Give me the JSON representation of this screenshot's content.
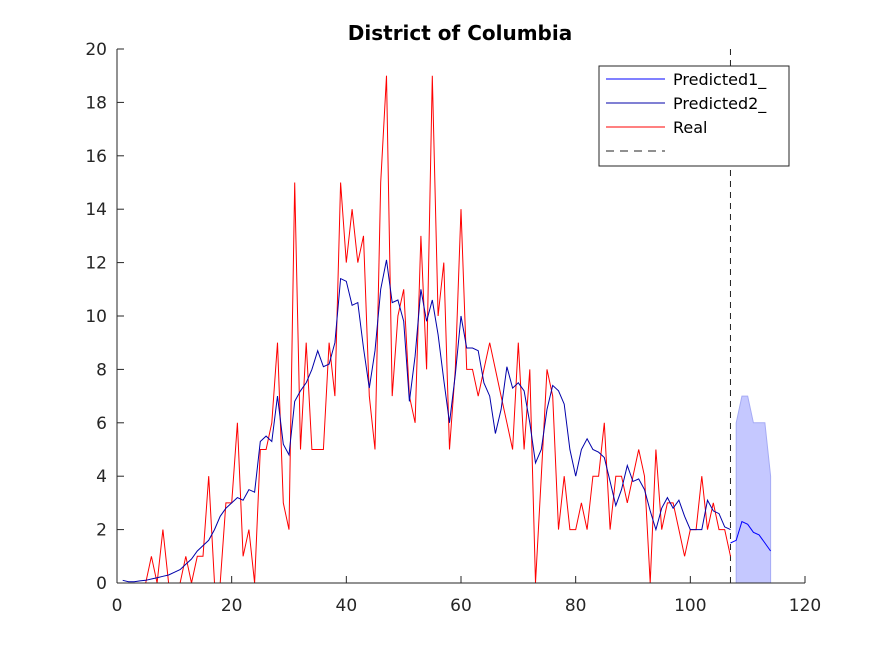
{
  "chart_data": {
    "type": "line",
    "title": "District of Columbia",
    "xlabel": "",
    "ylabel": "",
    "xlim": [
      0,
      120
    ],
    "ylim": [
      0,
      20
    ],
    "xticks": [
      0,
      20,
      40,
      60,
      80,
      100,
      120
    ],
    "yticks": [
      0,
      2,
      4,
      6,
      8,
      10,
      12,
      14,
      16,
      18,
      20
    ],
    "grid": false,
    "legend_position": "top-right",
    "vline_x": 107,
    "series": [
      {
        "name": "Predicted1_",
        "color": "#0000ff",
        "x": [
          107,
          108,
          109,
          110,
          111,
          112,
          113,
          114
        ],
        "y": [
          1.5,
          1.6,
          2.3,
          2.2,
          1.9,
          1.8,
          1.5,
          1.2
        ]
      },
      {
        "name": "Predicted2_",
        "color": "#0000aa",
        "x": [
          1,
          2,
          3,
          4,
          5,
          6,
          7,
          8,
          9,
          10,
          11,
          12,
          13,
          14,
          15,
          16,
          17,
          18,
          19,
          20,
          21,
          22,
          23,
          24,
          25,
          26,
          27,
          28,
          29,
          30,
          31,
          32,
          33,
          34,
          35,
          36,
          37,
          38,
          39,
          40,
          41,
          42,
          43,
          44,
          45,
          46,
          47,
          48,
          49,
          50,
          51,
          52,
          53,
          54,
          55,
          56,
          57,
          58,
          59,
          60,
          61,
          62,
          63,
          64,
          65,
          66,
          67,
          68,
          69,
          70,
          71,
          72,
          73,
          74,
          75,
          76,
          77,
          78,
          79,
          80,
          81,
          82,
          83,
          84,
          85,
          86,
          87,
          88,
          89,
          90,
          91,
          92,
          93,
          94,
          95,
          96,
          97,
          98,
          99,
          100,
          101,
          102,
          103,
          104,
          105,
          106,
          107
        ],
        "y": [
          0.1,
          0.05,
          0.05,
          0.08,
          0.1,
          0.15,
          0.2,
          0.25,
          0.3,
          0.4,
          0.5,
          0.7,
          0.9,
          1.2,
          1.4,
          1.6,
          2.0,
          2.5,
          2.8,
          3.0,
          3.2,
          3.1,
          3.5,
          3.4,
          5.3,
          5.5,
          5.3,
          7.0,
          5.2,
          4.8,
          6.8,
          7.2,
          7.5,
          8.0,
          8.7,
          8.1,
          8.2,
          9.0,
          11.4,
          11.3,
          10.4,
          10.5,
          8.8,
          7.3,
          8.7,
          11.0,
          12.1,
          10.5,
          10.6,
          9.8,
          6.8,
          8.5,
          11.0,
          9.8,
          10.6,
          9.3,
          7.6,
          6.0,
          7.8,
          10.0,
          8.8,
          8.8,
          8.7,
          7.5,
          7.0,
          5.6,
          6.5,
          8.1,
          7.3,
          7.5,
          7.2,
          6.0,
          4.5,
          5.0,
          6.5,
          7.4,
          7.2,
          6.7,
          5.0,
          4.0,
          5.0,
          5.4,
          5.0,
          4.9,
          4.7,
          3.8,
          2.9,
          3.5,
          4.4,
          3.8,
          3.9,
          3.5,
          2.7,
          2.0,
          2.8,
          3.2,
          2.8,
          3.1,
          2.5,
          2.0,
          2.0,
          2.0,
          3.1,
          2.7,
          2.6,
          2.1,
          2.0
        ]
      },
      {
        "name": "Real",
        "color": "#ff0000",
        "x": [
          1,
          2,
          3,
          4,
          5,
          6,
          7,
          8,
          9,
          10,
          11,
          12,
          13,
          14,
          15,
          16,
          17,
          18,
          19,
          20,
          21,
          22,
          23,
          24,
          25,
          26,
          27,
          28,
          29,
          30,
          31,
          32,
          33,
          34,
          35,
          36,
          37,
          38,
          39,
          40,
          41,
          42,
          43,
          44,
          45,
          46,
          47,
          48,
          49,
          50,
          51,
          52,
          53,
          54,
          55,
          56,
          57,
          58,
          59,
          60,
          61,
          62,
          63,
          64,
          65,
          66,
          67,
          68,
          69,
          70,
          71,
          72,
          73,
          74,
          75,
          76,
          77,
          78,
          79,
          80,
          81,
          82,
          83,
          84,
          85,
          86,
          87,
          88,
          89,
          90,
          91,
          92,
          93,
          94,
          95,
          96,
          97,
          98,
          99,
          100,
          101,
          102,
          103,
          104,
          105,
          106,
          107
        ],
        "y": [
          0,
          0,
          0,
          0,
          0,
          1,
          0,
          2,
          0,
          0,
          0,
          1,
          0,
          1,
          1,
          4,
          0,
          0,
          3,
          3,
          6,
          1,
          2,
          0,
          5,
          5,
          6,
          9,
          3,
          2,
          15,
          5,
          9,
          5,
          5,
          5,
          9,
          7,
          15,
          12,
          14,
          12,
          13,
          7,
          5,
          15,
          19,
          7,
          10,
          11,
          7,
          6,
          13,
          8,
          19,
          10,
          12,
          5,
          8,
          14,
          8,
          8,
          7,
          8,
          9,
          8,
          7,
          6,
          5,
          9,
          5,
          8,
          0,
          4,
          8,
          7,
          2,
          4,
          2,
          2,
          3,
          2,
          4,
          4,
          6,
          2,
          4,
          4,
          3,
          4,
          5,
          4,
          0,
          5,
          2,
          3,
          3,
          2,
          1,
          2,
          2,
          4,
          2,
          3,
          2,
          2,
          1
        ]
      },
      {
        "name": "",
        "style": "dashed",
        "color": "#222222"
      }
    ],
    "confidence_band": {
      "color": "#c5c8ff",
      "x": [
        108,
        109,
        110,
        111,
        112,
        113,
        114
      ],
      "y_low": [
        0,
        0,
        0,
        0,
        0,
        0,
        0
      ],
      "y_high": [
        6.0,
        7.0,
        7.0,
        6.0,
        6.0,
        6.0,
        4.0
      ]
    }
  }
}
